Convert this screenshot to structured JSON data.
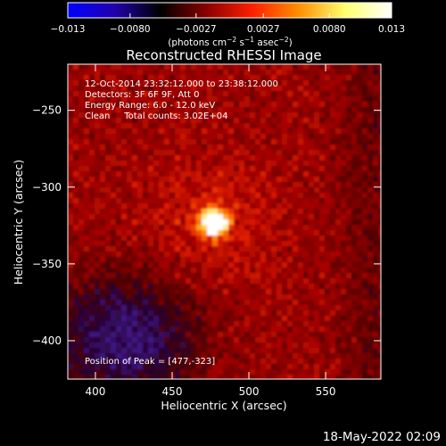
{
  "chart_data": {
    "type": "heatmap",
    "title": "Reconstructed RHESSI Image",
    "xlabel": "Heliocentric X (arcsec)",
    "ylabel": "Heliocentric Y (arcsec)",
    "xlim": [
      382,
      586
    ],
    "ylim": [
      -425,
      -220
    ],
    "x_ticks": [
      400,
      450,
      500,
      550
    ],
    "y_ticks": [
      -250,
      -300,
      -350,
      -400
    ],
    "x_tick_labels": [
      "400",
      "450",
      "500",
      "550"
    ],
    "y_tick_labels": [
      "−250",
      "−300",
      "−350",
      "−400"
    ],
    "colorbar": {
      "range": [
        -0.013,
        0.013
      ],
      "ticks": [
        -0.013,
        -0.008,
        -0.0027,
        0.0027,
        0.008,
        0.013
      ],
      "tick_labels": [
        "−0.013",
        "−0.0080",
        "−0.0027",
        "0.0027",
        "0.0080",
        "0.013"
      ],
      "unit_prefix": "(photons cm",
      "unit_exp1": "−2",
      "unit_mid": " s",
      "unit_exp2": "−1",
      "unit_mid2": " asec",
      "unit_exp3": "−2",
      "unit_suffix": ")",
      "colors": [
        "#0000ff",
        "#2200b0",
        "#000000",
        "#8a0000",
        "#ff2000",
        "#ff9000",
        "#ffff70",
        "#ffffff"
      ]
    },
    "annotations": [
      "12-Oct-2014 23:32:12.000 to 23:38:12.000",
      "Detectors: 3F 6F 9F, Att 0",
      "Energy Range: 6.0 - 12.0 keV",
      "Clean     Total counts: 3.02E+04"
    ],
    "peak": {
      "label": "Position of Peak = [477,-323]",
      "x": 477,
      "y": -323
    },
    "footer": "18-May-2022 02:09"
  }
}
